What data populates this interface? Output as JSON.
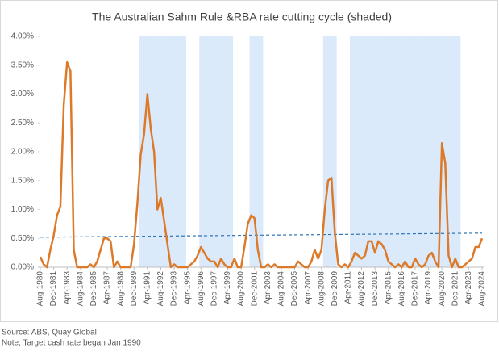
{
  "chart_data": {
    "type": "line",
    "title": "The Australian Sahm Rule &RBA rate cutting cycle (shaded)",
    "notes": [
      "Source: ABS, Quay Global",
      "Note; Target cash rate began Jan 1990"
    ],
    "categories": [
      "Aug-1980",
      null,
      null,
      null,
      "Dec-1981",
      null,
      null,
      null,
      "Apr-1983",
      null,
      null,
      null,
      "Aug-1984",
      null,
      null,
      null,
      "Dec-1985",
      null,
      null,
      null,
      "Apr-1987",
      null,
      null,
      null,
      "Aug-1988",
      null,
      null,
      null,
      "Dec-1989",
      null,
      null,
      null,
      "Apr-1991",
      null,
      null,
      null,
      "Aug-1992",
      null,
      null,
      null,
      "Dec-1993",
      null,
      null,
      null,
      "Apr-1995",
      null,
      null,
      null,
      "Aug-1996",
      null,
      null,
      null,
      "Dec-1997",
      null,
      null,
      null,
      "Apr-1999",
      null,
      null,
      null,
      "Aug-2000",
      null,
      null,
      null,
      "Dec-2001",
      null,
      null,
      null,
      "Apr-2003",
      null,
      null,
      null,
      "Aug-2004",
      null,
      null,
      null,
      "Dec-2005",
      null,
      null,
      null,
      "Apr-2007",
      null,
      null,
      null,
      "Aug-2008",
      null,
      null,
      null,
      "Dec-2009",
      null,
      null,
      null,
      "Apr-2011",
      null,
      null,
      null,
      "Aug-2012",
      null,
      null,
      null,
      "Dec-2013",
      null,
      null,
      null,
      "Apr-2015",
      null,
      null,
      null,
      "Aug-2016",
      null,
      null,
      null,
      "Dec-2017",
      null,
      null,
      null,
      "Apr-2019",
      null,
      null,
      null,
      "Aug-2020",
      null,
      null,
      null,
      "Dec-2021",
      null,
      null,
      null,
      "Apr-2023",
      null,
      null,
      null,
      "Aug-2024"
    ],
    "series": [
      {
        "color": "#dc7a2a",
        "values": [
          0.18,
          0.05,
          0,
          0.3,
          0.55,
          0.9,
          1.05,
          2.8,
          3.55,
          3.4,
          0.3,
          0,
          0,
          0,
          0,
          0.05,
          0,
          0.1,
          0.3,
          0.5,
          0.5,
          0.45,
          0,
          0.1,
          0,
          0,
          0,
          0,
          0.4,
          1.1,
          1.95,
          2.3,
          3.0,
          2.4,
          2.0,
          1.0,
          1.2,
          0.8,
          0.4,
          0,
          0.05,
          0,
          0,
          0,
          0,
          0.05,
          0.1,
          0.2,
          0.35,
          0.25,
          0.15,
          0.1,
          0.1,
          0,
          0.15,
          0.05,
          0,
          0,
          0.15,
          0,
          0,
          0.35,
          0.75,
          0.9,
          0.85,
          0.3,
          0,
          0,
          0.05,
          0,
          0.05,
          0,
          0,
          0,
          0,
          0,
          0,
          0.1,
          0.05,
          0,
          0,
          0.1,
          0.3,
          0.15,
          0.3,
          1.0,
          1.5,
          1.55,
          0.6,
          0.05,
          0,
          0.05,
          0,
          0.1,
          0.25,
          0.2,
          0.15,
          0.2,
          0.45,
          0.45,
          0.25,
          0.45,
          0.4,
          0.3,
          0.1,
          0.05,
          0,
          0.05,
          0,
          0.1,
          0,
          0,
          0.15,
          0.05,
          0,
          0.05,
          0.2,
          0.25,
          0.1,
          0,
          2.15,
          1.8,
          0.2,
          0,
          0.15,
          0,
          0,
          0.05,
          0.1,
          0.15,
          0.35,
          0.35,
          0.5
        ]
      },
      {
        "color": "#dbeafb",
        "kind": "shade",
        "values": [
          null,
          null,
          null,
          null,
          null,
          null,
          null,
          null,
          null,
          null,
          null,
          null,
          null,
          null,
          null,
          null,
          null,
          null,
          null,
          null,
          null,
          null,
          null,
          null,
          null,
          null,
          null,
          null,
          null,
          null,
          4,
          4,
          4,
          4,
          4,
          4,
          4,
          4,
          4,
          4,
          4,
          4,
          4,
          4,
          null,
          null,
          null,
          null,
          4,
          4,
          4,
          4,
          4,
          4,
          4,
          4,
          4,
          4,
          null,
          null,
          null,
          null,
          null,
          4,
          4,
          4,
          4,
          null,
          null,
          null,
          null,
          null,
          null,
          null,
          null,
          null,
          null,
          null,
          null,
          null,
          null,
          null,
          null,
          null,
          null,
          4,
          4,
          4,
          4,
          null,
          null,
          null,
          null,
          4,
          4,
          4,
          4,
          4,
          4,
          4,
          4,
          4,
          4,
          4,
          4,
          4,
          4,
          4,
          4,
          4,
          4,
          4,
          4,
          4,
          4,
          4,
          4,
          4,
          4,
          4,
          4,
          4,
          4,
          4,
          4,
          4,
          null,
          null,
          null,
          null,
          null,
          null,
          null
        ]
      }
    ],
    "trendline": {
      "color": "#2e75b6",
      "values": [
        0.52,
        0.59
      ]
    },
    "ylim": [
      0,
      4
    ],
    "yticks": [
      {
        "value": 0,
        "label": "0.00%"
      },
      {
        "value": 0.5,
        "label": "0.50%"
      },
      {
        "value": 1,
        "label": "1.00%"
      },
      {
        "value": 1.5,
        "label": "1.50%"
      },
      {
        "value": 2,
        "label": "2.00%"
      },
      {
        "value": 2.5,
        "label": "2.50%"
      },
      {
        "value": 3,
        "label": "3.00%"
      },
      {
        "value": 3.5,
        "label": "3.50%"
      },
      {
        "value": 4,
        "label": "4.00%"
      }
    ]
  }
}
